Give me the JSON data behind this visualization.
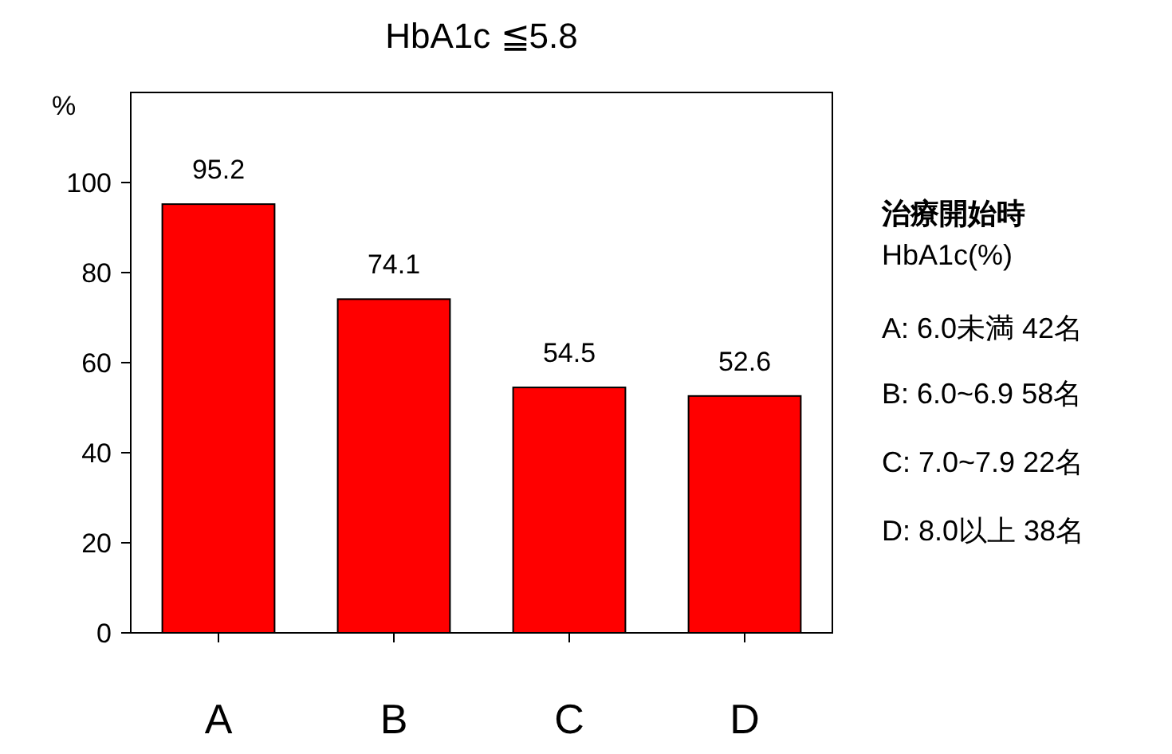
{
  "chart_data": {
    "type": "bar",
    "title": "HbA1c ≦5.8",
    "ylabel": "%",
    "categories": [
      "A",
      "B",
      "C",
      "D"
    ],
    "values": [
      95.2,
      74.1,
      54.5,
      52.6
    ],
    "color": "#ff0000",
    "ylim": [
      0,
      120
    ],
    "yticks": [
      0,
      20,
      40,
      60,
      80,
      100
    ],
    "grid": false,
    "data_labels": true,
    "annotations": [
      "治療開始時",
      "HbA1c(%)",
      "A: 6.0未満 42名",
      "B: 6.0~6.9 58名",
      "C: 7.0~7.9 22名",
      "D: 8.0以上 38名"
    ]
  }
}
